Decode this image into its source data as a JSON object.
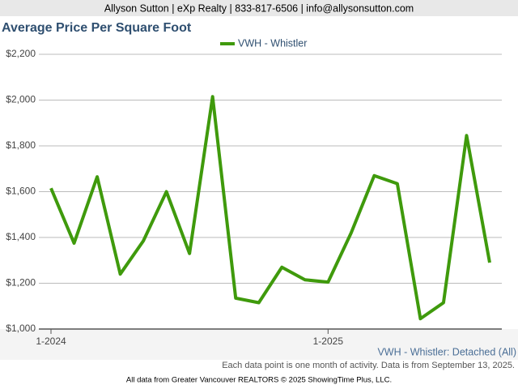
{
  "header": "Allyson Sutton | eXp Realty | 833-817-6506 | info@allysonsutton.com",
  "footer": "All data from Greater Vancouver REALTORS © 2025 ShowingTime Plus, LLC.",
  "chart_data": {
    "type": "line",
    "title": "Average Price Per Square Foot",
    "annotations": [
      "VWH - Whistler: Detached (All)",
      "Each data point is one month of activity. Data is from September 13, 2025."
    ],
    "categories": [
      "1-2024",
      null,
      null,
      null,
      null,
      null,
      null,
      null,
      null,
      null,
      null,
      null,
      "1-2025",
      null,
      null,
      null,
      null,
      null,
      null,
      null
    ],
    "series": [
      {
        "name": "VWH - Whistler",
        "color": "#3f9a0c",
        "values": [
          1615,
          1375,
          1665,
          1240,
          1385,
          1600,
          1330,
          2015,
          1135,
          1115,
          1270,
          1215,
          1205,
          1420,
          1670,
          1635,
          1045,
          1115,
          1845,
          1290
        ]
      }
    ],
    "ylim": [
      1000,
      2200
    ],
    "yticks": [
      {
        "value": 1000,
        "label": "$1,000"
      },
      {
        "value": 1200,
        "label": "$1,200"
      },
      {
        "value": 1400,
        "label": "$1,400"
      },
      {
        "value": 1600,
        "label": "$1,600"
      },
      {
        "value": 1800,
        "label": "$1,800"
      },
      {
        "value": 2000,
        "label": "$2,000"
      },
      {
        "value": 2200,
        "label": "$2,200"
      }
    ],
    "grid": true,
    "legend": "top"
  }
}
